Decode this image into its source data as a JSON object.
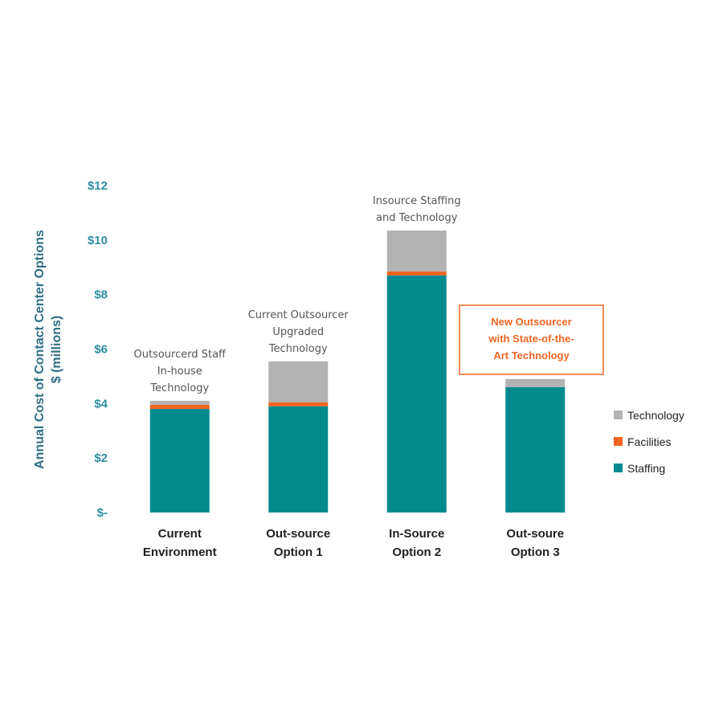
{
  "chart_data": {
    "type": "bar",
    "stacked": true,
    "title": "",
    "ylabel_lines": [
      "Annual Cost of Contact Center Options",
      "$ (millions)"
    ],
    "xlabel": "",
    "ylim": [
      0,
      12
    ],
    "yticks": [
      {
        "value": 0,
        "label": "$-"
      },
      {
        "value": 2,
        "label": "$2"
      },
      {
        "value": 4,
        "label": "$4"
      },
      {
        "value": 6,
        "label": "$6"
      },
      {
        "value": 8,
        "label": "$8"
      },
      {
        "value": 10,
        "label": "$10"
      },
      {
        "value": 12,
        "label": "$12"
      }
    ],
    "categories": [
      [
        "Current",
        "Environment"
      ],
      [
        "Out-source",
        "Option 1"
      ],
      [
        "In-Source",
        "Option 2"
      ],
      [
        "Out-soure",
        "Option 3"
      ]
    ],
    "series": [
      {
        "name": "Staffing",
        "color": "#008b8f",
        "values": [
          3.8,
          3.9,
          8.7,
          4.6
        ]
      },
      {
        "name": "Facilities",
        "color": "#f26522",
        "values": [
          0.15,
          0.15,
          0.15,
          0.0
        ]
      },
      {
        "name": "Technology",
        "color": "#b3b3b3",
        "values": [
          0.15,
          1.5,
          1.5,
          0.3
        ]
      }
    ],
    "legend_order": [
      "Technology",
      "Facilities",
      "Staffing"
    ],
    "legend_position": "right",
    "grid": false,
    "annotations": [
      {
        "category": 0,
        "lines": [
          "Outsourcerd Staff",
          "In-house",
          "Technology"
        ]
      },
      {
        "category": 1,
        "lines": [
          "Current Outsourcer",
          "Upgraded",
          "Technology"
        ]
      },
      {
        "category": 2,
        "lines": [
          "Insource Staffing",
          "and Technology"
        ]
      }
    ],
    "callout": {
      "category": 3,
      "lines": [
        "New Outsourcer",
        "with State-of-the-",
        "Art Technology"
      ],
      "color": "#f26522"
    }
  }
}
